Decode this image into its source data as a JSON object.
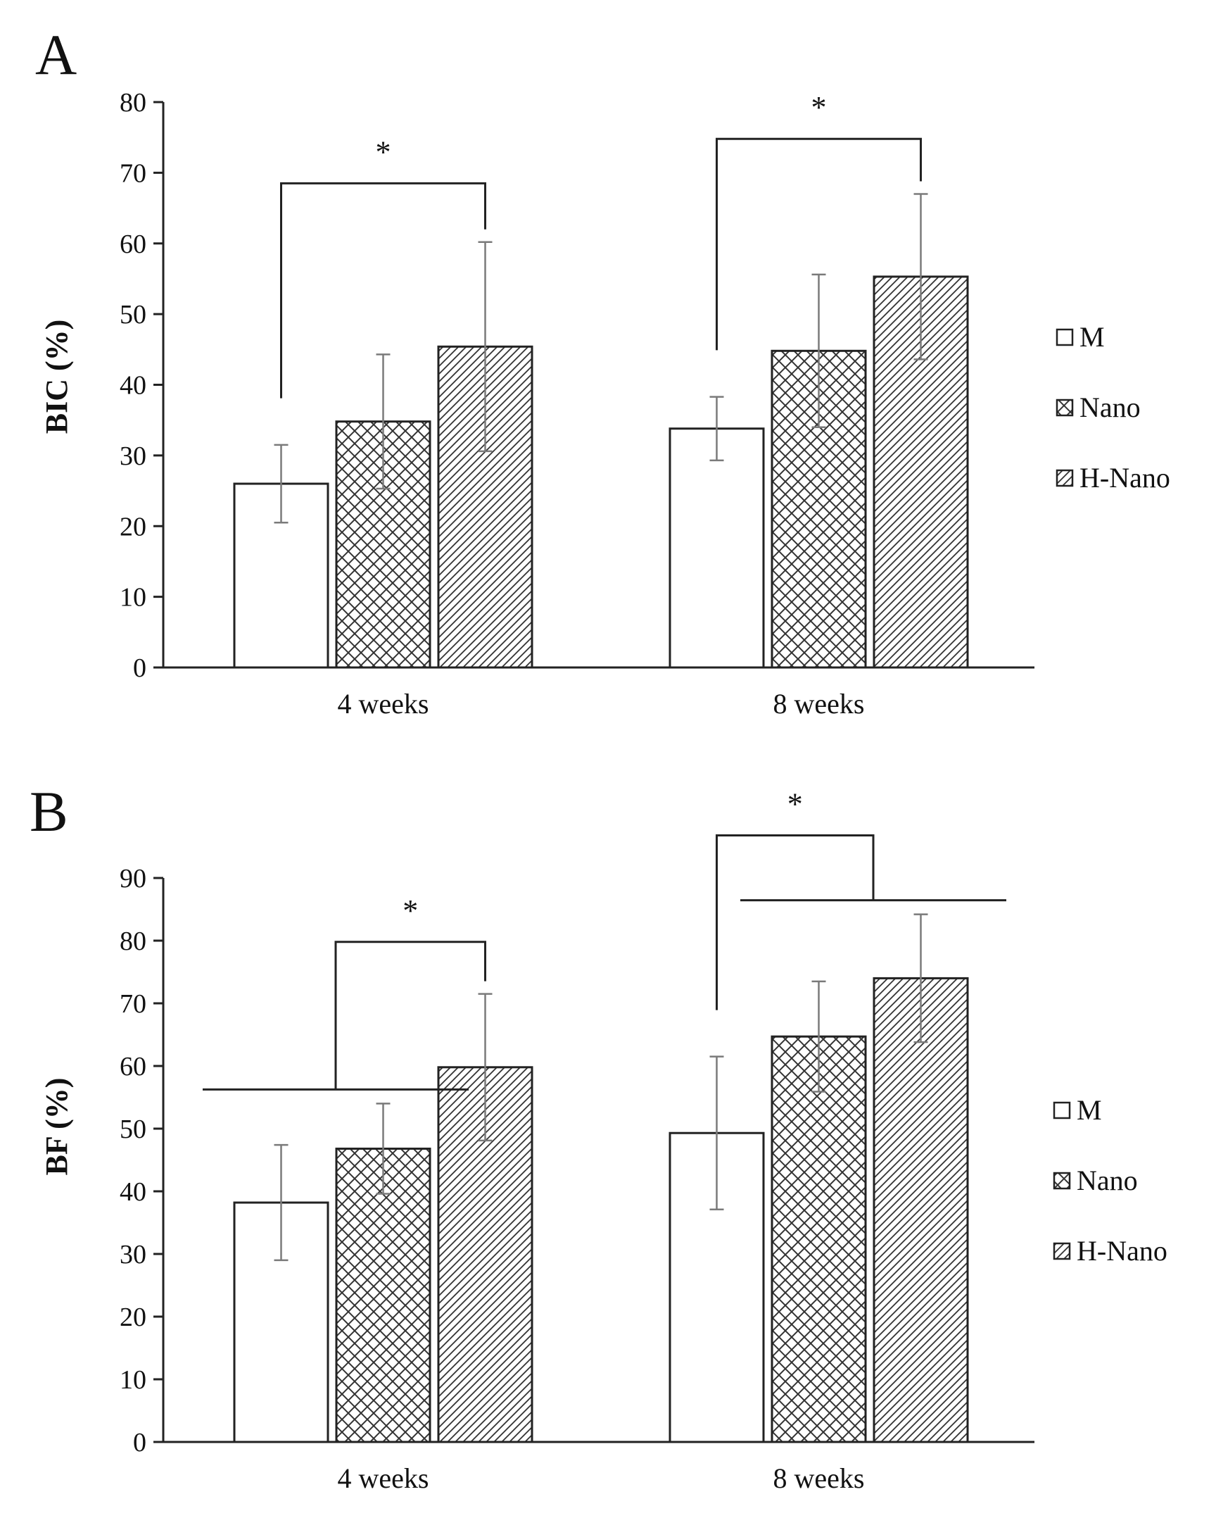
{
  "legend_entries": [
    "M",
    "Nano",
    "H-Nano"
  ],
  "chart_data": [
    {
      "type": "bar",
      "panel": "A",
      "ylabel": "BIC (%)",
      "xlabel": "",
      "ylim": [
        0,
        80
      ],
      "yticks": [
        0,
        10,
        20,
        30,
        40,
        50,
        60,
        70,
        80
      ],
      "categories": [
        "4 weeks",
        "8 weeks"
      ],
      "series": [
        {
          "name": "M",
          "pattern": "plain",
          "values": [
            26,
            33.8
          ],
          "errors": [
            5.5,
            4.5
          ]
        },
        {
          "name": "Nano",
          "pattern": "crosshatch",
          "values": [
            34.8,
            44.8
          ],
          "errors": [
            9.5,
            10.8
          ]
        },
        {
          "name": "H-Nano",
          "pattern": "diagonal",
          "values": [
            45.4,
            55.3
          ],
          "errors": [
            14.8,
            11.7
          ]
        }
      ],
      "significance": [
        {
          "label": "*",
          "category": "4 weeks",
          "from": "M",
          "to": "H-Nano",
          "level": 68.5
        },
        {
          "label": "*",
          "category": "8 weeks",
          "from": "M",
          "to": "H-Nano",
          "level": 74.8
        }
      ],
      "grid": false,
      "legend_position": "right"
    },
    {
      "type": "bar",
      "panel": "B",
      "ylabel": "BF (%)",
      "xlabel": "",
      "ylim": [
        0,
        90
      ],
      "yticks": [
        0,
        10,
        20,
        30,
        40,
        50,
        60,
        70,
        80,
        90
      ],
      "categories": [
        "4 weeks",
        "8 weeks"
      ],
      "series": [
        {
          "name": "M",
          "pattern": "plain",
          "values": [
            38.2,
            49.3
          ],
          "errors": [
            9.2,
            12.2
          ]
        },
        {
          "name": "Nano",
          "pattern": "crosshatch",
          "values": [
            46.8,
            64.7
          ],
          "errors": [
            7.2,
            8.8
          ]
        },
        {
          "name": "H-Nano",
          "pattern": "diagonal",
          "values": [
            59.8,
            74.0
          ],
          "errors": [
            11.7,
            10.2
          ]
        }
      ],
      "significance": [
        {
          "label": "*",
          "category": "4 weeks",
          "from": "M+Nano",
          "to": "H-Nano",
          "level": 79.8
        },
        {
          "label": "*",
          "category": "8 weeks",
          "from": "M",
          "to": "Nano+H-Nano",
          "level": 96.8
        }
      ],
      "grid": false,
      "legend_position": "right"
    }
  ]
}
